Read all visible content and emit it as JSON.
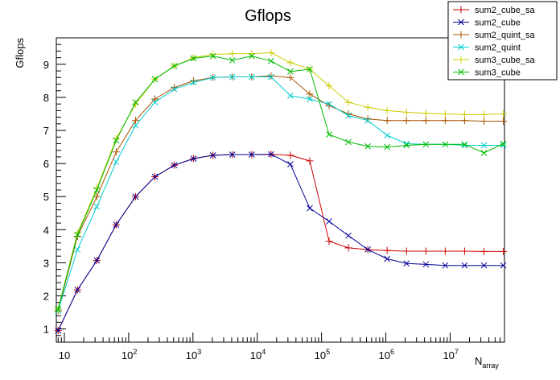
{
  "chart_data": {
    "type": "line",
    "title": "Gflops",
    "ylabel": "Gflops",
    "xlabel_main": "N",
    "xlabel_sub": "array",
    "x_scale": "log",
    "xlim": [
      7.5,
      70000000
    ],
    "ylim": [
      0.6,
      9.8
    ],
    "y_ticks": [
      1,
      2,
      3,
      4,
      5,
      6,
      7,
      8,
      9
    ],
    "x_ticks": [
      {
        "value": 10,
        "base": "10",
        "exp": ""
      },
      {
        "value": 100,
        "base": "10",
        "exp": "2"
      },
      {
        "value": 1000,
        "base": "10",
        "exp": "3"
      },
      {
        "value": 10000,
        "base": "10",
        "exp": "4"
      },
      {
        "value": 100000,
        "base": "10",
        "exp": "5"
      },
      {
        "value": 1000000,
        "base": "10",
        "exp": "6"
      },
      {
        "value": 10000000,
        "base": "10",
        "exp": "7"
      }
    ],
    "grid": false,
    "legend_position": "top-right",
    "x": [
      8,
      16,
      32,
      64,
      128,
      256,
      512,
      1024,
      2048,
      4096,
      8192,
      16384,
      32768,
      65536,
      131072,
      262144,
      524288,
      1048576,
      2097152,
      4194304,
      8388608,
      16777216,
      33554432,
      67108864
    ],
    "series": [
      {
        "name": "sum2_cube_sa",
        "color": "#cc0000",
        "marker": "plus",
        "values": [
          0.95,
          2.18,
          3.07,
          4.15,
          5.0,
          5.6,
          5.95,
          6.15,
          6.25,
          6.27,
          6.27,
          6.28,
          6.25,
          6.08,
          3.65,
          3.45,
          3.4,
          3.37,
          3.35,
          3.35,
          3.35,
          3.35,
          3.34,
          3.34
        ]
      },
      {
        "name": "sum2_cube",
        "color": "#000099",
        "marker": "x",
        "values": [
          0.95,
          2.18,
          3.07,
          4.15,
          5.0,
          5.6,
          5.95,
          6.15,
          6.25,
          6.27,
          6.27,
          6.28,
          5.98,
          4.65,
          4.25,
          3.82,
          3.4,
          3.12,
          2.98,
          2.95,
          2.92,
          2.92,
          2.92,
          2.92
        ]
      },
      {
        "name": "sum2_quint_sa",
        "color": "#a65300",
        "marker": "plus",
        "values": [
          1.55,
          3.8,
          5.0,
          6.35,
          7.3,
          7.95,
          8.3,
          8.5,
          8.6,
          8.62,
          8.62,
          8.65,
          8.6,
          8.1,
          7.75,
          7.5,
          7.35,
          7.3,
          7.3,
          7.3,
          7.3,
          7.3,
          7.28,
          7.28
        ]
      },
      {
        "name": "sum2_quint",
        "color": "#00cccc",
        "marker": "x",
        "values": [
          1.55,
          3.4,
          4.7,
          6.05,
          7.15,
          7.85,
          8.25,
          8.45,
          8.6,
          8.62,
          8.62,
          8.62,
          8.05,
          7.95,
          7.8,
          7.45,
          7.3,
          6.85,
          6.6,
          6.58,
          6.58,
          6.55,
          6.55,
          6.55
        ]
      },
      {
        "name": "sum3_cube_sa",
        "color": "#cccc00",
        "marker": "plus",
        "values": [
          1.6,
          3.9,
          5.25,
          6.75,
          7.8,
          8.55,
          8.95,
          9.2,
          9.3,
          9.32,
          9.32,
          9.35,
          9.05,
          8.85,
          8.35,
          7.85,
          7.7,
          7.6,
          7.55,
          7.52,
          7.5,
          7.48,
          7.48,
          7.5
        ]
      },
      {
        "name": "sum3_cube",
        "color": "#00bb00",
        "marker": "x",
        "values": [
          1.6,
          3.85,
          5.2,
          6.7,
          7.85,
          8.55,
          8.95,
          9.18,
          9.25,
          9.12,
          9.25,
          9.1,
          8.78,
          8.85,
          6.88,
          6.65,
          6.52,
          6.5,
          6.55,
          6.58,
          6.58,
          6.58,
          6.32,
          6.6
        ]
      }
    ]
  }
}
